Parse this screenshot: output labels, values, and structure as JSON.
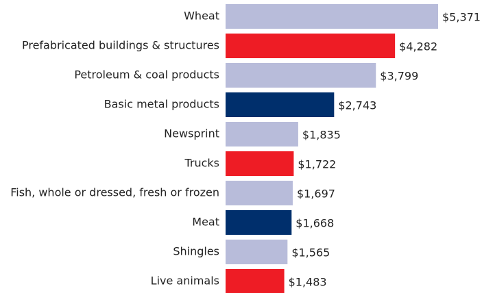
{
  "chart_data": {
    "type": "bar",
    "orientation": "horizontal",
    "categories": [
      "Wheat",
      "Prefabricated buildings & structures",
      "Petroleum & coal products",
      "Basic metal products",
      "Newsprint",
      "Trucks",
      "Fish, whole or dressed, fresh or frozen",
      "Meat",
      "Shingles",
      "Live animals"
    ],
    "values": [
      5371,
      4282,
      3799,
      2743,
      1835,
      1722,
      1697,
      1668,
      1565,
      1483
    ],
    "value_labels": [
      "$5,371",
      "$4,282",
      "$3,799",
      "$2,743",
      "$1,835",
      "$1,722",
      "$1,697",
      "$1,668",
      "$1,565",
      "$1,483"
    ],
    "colors": [
      "#b8bcda",
      "#ee1c25",
      "#b8bcda",
      "#002f6c",
      "#b8bcda",
      "#ee1c25",
      "#b8bcda",
      "#002f6c",
      "#b8bcda",
      "#ee1c25"
    ]
  }
}
